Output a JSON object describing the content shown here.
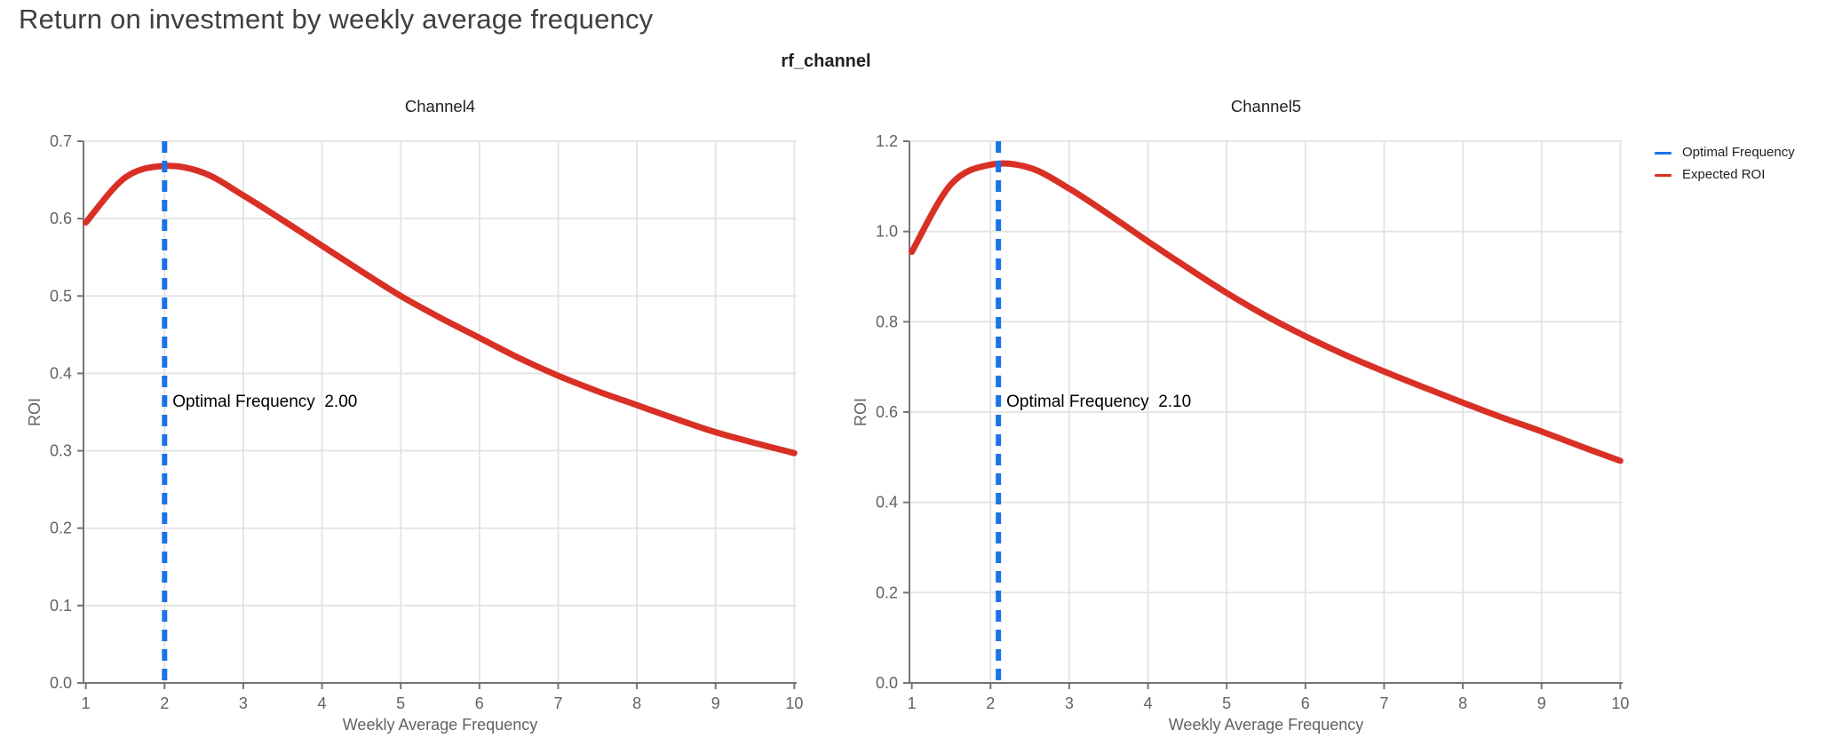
{
  "page": {
    "title": "Return on investment by weekly average frequency",
    "facet_title": "rf_channel"
  },
  "colors": {
    "expected_roi": "#d93025",
    "optimal_frequency": "#1a73e8",
    "grid": "#e3e3e3",
    "axis": "#757575",
    "tick_label": "#5f6368",
    "axis_title": "#5f6368",
    "subplot_title": "#202124",
    "annotation_text": "#000000",
    "page_title": "#3c4043",
    "legend_text": "#202124",
    "background": "#ffffff"
  },
  "legend": {
    "position": "top-right",
    "items": [
      {
        "label": "Optimal Frequency",
        "color": "#1a73e8",
        "style": "line"
      },
      {
        "label": "Expected ROI",
        "color": "#d93025",
        "style": "line"
      }
    ]
  },
  "chart_data": [
    {
      "type": "line",
      "title": "Channel4",
      "xlabel": "Weekly Average Frequency",
      "ylabel": "ROI",
      "xlim": [
        1,
        10
      ],
      "ylim": [
        0.0,
        0.7
      ],
      "xticks": [
        1,
        2,
        3,
        4,
        5,
        6,
        7,
        8,
        9,
        10
      ],
      "xticklabels": [
        "1",
        "2",
        "3",
        "4",
        "5",
        "6",
        "7",
        "8",
        "9",
        "10"
      ],
      "yticks": [
        0.0,
        0.1,
        0.2,
        0.3,
        0.4,
        0.5,
        0.6,
        0.7
      ],
      "yticklabels": [
        "0.0",
        "0.1",
        "0.2",
        "0.3",
        "0.4",
        "0.5",
        "0.6",
        "0.7"
      ],
      "grid": true,
      "series": [
        {
          "name": "Expected ROI",
          "x": [
            1,
            1.5,
            2,
            2.5,
            3,
            3.5,
            4,
            4.5,
            5,
            5.5,
            6,
            6.5,
            7,
            7.5,
            8,
            8.5,
            9,
            9.5,
            10
          ],
          "y": [
            0.595,
            0.653,
            0.668,
            0.659,
            0.63,
            0.598,
            0.565,
            0.532,
            0.5,
            0.472,
            0.446,
            0.42,
            0.397,
            0.377,
            0.359,
            0.341,
            0.324,
            0.31,
            0.297
          ]
        }
      ],
      "vline": {
        "name": "Optimal Frequency",
        "x": 2.0,
        "style": "dashed"
      },
      "annotation": "Optimal Frequency  2.00",
      "optimal_frequency_value": "2.00"
    },
    {
      "type": "line",
      "title": "Channel5",
      "xlabel": "Weekly Average Frequency",
      "ylabel": "ROI",
      "xlim": [
        1,
        10
      ],
      "ylim": [
        0.0,
        1.2
      ],
      "xticks": [
        1,
        2,
        3,
        4,
        5,
        6,
        7,
        8,
        9,
        10
      ],
      "xticklabels": [
        "1",
        "2",
        "3",
        "4",
        "5",
        "6",
        "7",
        "8",
        "9",
        "10"
      ],
      "yticks": [
        0.0,
        0.2,
        0.4,
        0.6,
        0.8,
        1.0,
        1.2
      ],
      "yticklabels": [
        "0.0",
        "0.2",
        "0.4",
        "0.6",
        "0.8",
        "1.0",
        "1.2"
      ],
      "grid": true,
      "series": [
        {
          "name": "Expected ROI",
          "x": [
            1,
            1.5,
            2,
            2.5,
            3,
            3.5,
            4,
            4.5,
            5,
            5.5,
            6,
            6.5,
            7,
            7.5,
            8,
            8.5,
            9,
            9.5,
            10
          ],
          "y": [
            0.955,
            1.105,
            1.148,
            1.141,
            1.095,
            1.038,
            0.978,
            0.92,
            0.864,
            0.813,
            0.768,
            0.727,
            0.69,
            0.655,
            0.621,
            0.588,
            0.557,
            0.524,
            0.492
          ]
        }
      ],
      "vline": {
        "name": "Optimal Frequency",
        "x": 2.1,
        "style": "dashed"
      },
      "annotation": "Optimal Frequency  2.10",
      "optimal_frequency_value": "2.10"
    }
  ]
}
